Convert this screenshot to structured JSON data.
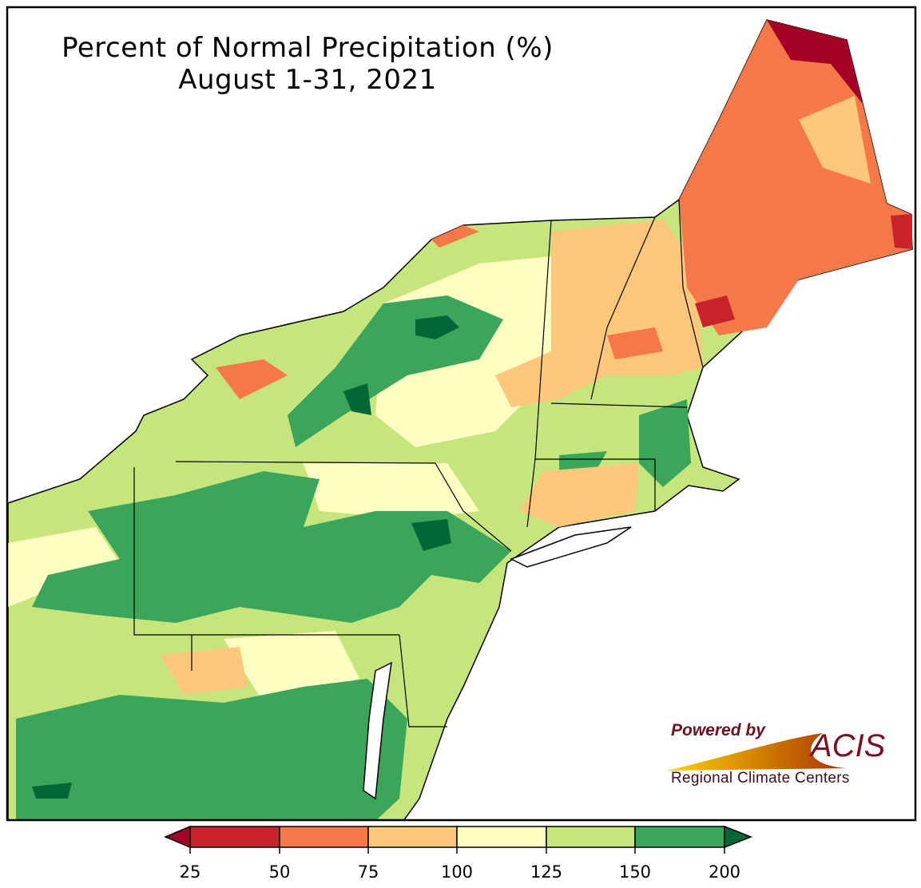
{
  "title": {
    "line1": "Percent of Normal Precipitation (%)",
    "line2": "August 1-31, 2021"
  },
  "colorbar": {
    "ticks": [
      "25",
      "50",
      "75",
      "100",
      "125",
      "150",
      "200"
    ],
    "colors": [
      "#c8232b",
      "#f57848",
      "#fdc87c",
      "#fffec2",
      "#c6e57d",
      "#39a659"
    ],
    "under_color": "#a50026",
    "over_color": "#006837"
  },
  "logo": {
    "powered_by": "Powered by",
    "name": "ACIS",
    "subtitle": "Regional Climate Centers"
  }
}
